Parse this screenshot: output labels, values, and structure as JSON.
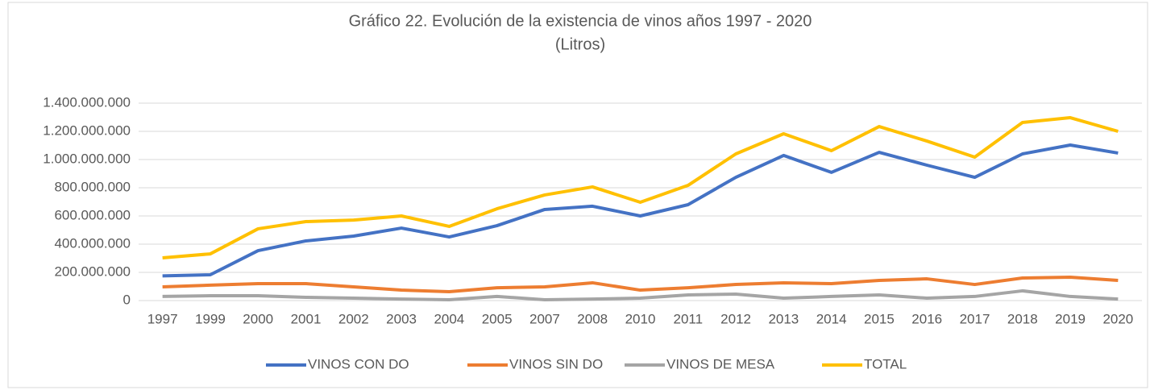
{
  "chart_data": {
    "type": "line",
    "title": "Gráfico 22. Evolución de la existencia de vinos años 1997 - 2020",
    "subtitle": "(Litros)",
    "categories": [
      "1997",
      "1999",
      "2000",
      "2001",
      "2002",
      "2003",
      "2004",
      "2005",
      "2007",
      "2008",
      "2010",
      "2011",
      "2012",
      "2013",
      "2014",
      "2015",
      "2016",
      "2017",
      "2018",
      "2019",
      "2020"
    ],
    "series": [
      {
        "name": "VINOS CON DO",
        "color": "#4472c4",
        "values": [
          175000000,
          183000000,
          354000000,
          423000000,
          457000000,
          514000000,
          451000000,
          531000000,
          646000000,
          669000000,
          600000000,
          680000000,
          874000000,
          1029000000,
          909000000,
          1051000000,
          960000000,
          874000000,
          1040000000,
          1103000000,
          1046000000
        ]
      },
      {
        "name": "VINOS SIN DO",
        "color": "#ed7d31",
        "values": [
          97000000,
          109000000,
          120000000,
          120000000,
          97000000,
          74000000,
          63000000,
          91000000,
          97000000,
          126000000,
          74000000,
          91000000,
          114000000,
          126000000,
          120000000,
          143000000,
          154000000,
          114000000,
          160000000,
          166000000,
          143000000
        ]
      },
      {
        "name": "VINOS DE MESA",
        "color": "#a5a5a5",
        "values": [
          29000000,
          34000000,
          34000000,
          23000000,
          17000000,
          11000000,
          6000000,
          29000000,
          6000000,
          11000000,
          17000000,
          40000000,
          46000000,
          17000000,
          29000000,
          40000000,
          17000000,
          29000000,
          69000000,
          29000000,
          11000000
        ]
      },
      {
        "name": "TOTAL",
        "color": "#ffc000",
        "values": [
          303000000,
          331000000,
          509000000,
          560000000,
          571000000,
          600000000,
          526000000,
          651000000,
          749000000,
          806000000,
          697000000,
          817000000,
          1040000000,
          1183000000,
          1063000000,
          1234000000,
          1131000000,
          1017000000,
          1263000000,
          1297000000,
          1200000000
        ]
      }
    ],
    "ylim": [
      0,
      1400000000
    ],
    "yticks": [
      0,
      {
        "value": 200000000,
        "label": "200.000.000"
      },
      {
        "value": 400000000,
        "label": "400.000.000"
      },
      {
        "value": 600000000,
        "label": "600.000.000"
      },
      {
        "value": 800000000,
        "label": "800.000.000"
      },
      {
        "value": 1000000000,
        "label": "1.000.000.000"
      },
      {
        "value": 1200000000,
        "label": "1.200.000.000"
      },
      {
        "value": 1400000000,
        "label": "1.400.000.000"
      }
    ],
    "grid": true,
    "legend": "bottom"
  }
}
